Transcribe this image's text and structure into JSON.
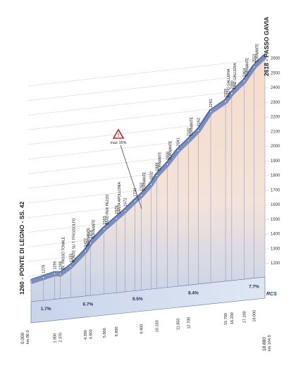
{
  "chart_data": {
    "type": "area",
    "title": "",
    "start_label": "1260 - PONTE DI LEGNO - SS. 42",
    "end_label": "2618 - PASSO GAVIA",
    "start_km": "0.000",
    "start_km_sub": "km 86.0",
    "end_km": "18.880",
    "end_km_sub": "km 104.9",
    "ylim": [
      1100,
      2650
    ],
    "y_ticks": [
      "1200",
      "1300",
      "1400",
      "1500",
      "1600",
      "1700",
      "1800",
      "1900",
      "2000",
      "2100",
      "2200",
      "2300",
      "2400",
      "2500",
      "2600"
    ],
    "x": [
      0,
      1.0,
      1.9,
      2.37,
      3.2,
      4.39,
      4.8,
      5.9,
      6.89,
      7.6,
      8.4,
      8.9,
      9.7,
      10.15,
      11.0,
      11.85,
      12.7,
      13.5,
      14.5,
      15.7,
      16.2,
      17.2,
      18.0,
      18.88
    ],
    "y": [
      1260,
      1278,
      1295,
      1289,
      1333,
      1427,
      1478,
      1563,
      1626,
      1672,
      1730,
      1763,
      1832,
      1888,
      1956,
      2041,
      2102,
      2162,
      2281,
      2339,
      2390,
      2464,
      2553,
      2618
    ],
    "annotations": [
      "BV. PASSO TONALE",
      "PONTE SU T. FRIGIDOLFO",
      "TORNANTE",
      "TORNANTE",
      "BIVIO PER PEZZO",
      "SANTA APOLLONIA",
      "TORNANTE",
      "TORNANTE",
      "TORNANTE",
      "TORNANTE",
      "INIZIO GALLERIA",
      "FINE GALLERIA",
      "TORNANTE",
      "TORNANTE"
    ],
    "max_gradient_label": "max 16%",
    "segment_gradients": [
      "1.7%",
      "6.7%",
      "9.5%",
      "8.4%",
      "7.7%"
    ],
    "km_labels": [
      "1.900",
      "2.370",
      "4.390",
      "4.800",
      "5.900",
      "6.890",
      "8.900",
      "10.150",
      "11.850",
      "12.700",
      "15.700",
      "16.200",
      "17.200",
      "18.000"
    ],
    "colors": {
      "road_band": "#7b8fc0",
      "grid": "#9aa0b8",
      "fill_top": "#f6dcc9",
      "fill_bottom": "#bfcde8",
      "max_marker": "#c0202a"
    }
  },
  "brand_mark": "RCS"
}
